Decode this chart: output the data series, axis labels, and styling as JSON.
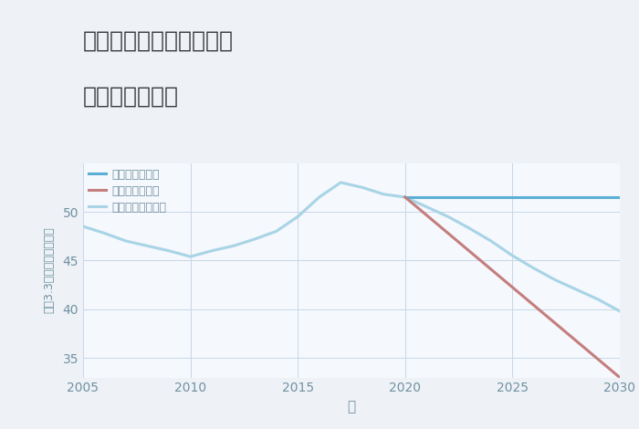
{
  "title_line1": "兵庫県西宮市名塩赤坂の",
  "title_line2": "土地の価格推移",
  "xlabel": "年",
  "ylabel": "平（3.3㎡）単価（万円）",
  "background_color": "#eef2f7",
  "plot_bg_color": "#f5f8fc",
  "good_scenario": {
    "label": "グッドシナリオ",
    "color": "#5bafd6",
    "years": [
      2020,
      2021,
      2022,
      2023,
      2024,
      2025,
      2026,
      2027,
      2028,
      2029,
      2030
    ],
    "values": [
      51.5,
      51.5,
      51.5,
      51.5,
      51.5,
      51.5,
      51.5,
      51.5,
      51.5,
      51.5,
      51.5
    ]
  },
  "bad_scenario": {
    "label": "バッドシナリオ",
    "color": "#c47e7e",
    "years": [
      2020,
      2030
    ],
    "values": [
      51.5,
      33.0
    ]
  },
  "normal_scenario": {
    "label": "ノーマルシナリオ",
    "color": "#a8d4e6",
    "years": [
      2005,
      2006,
      2007,
      2008,
      2009,
      2010,
      2011,
      2012,
      2013,
      2014,
      2015,
      2016,
      2017,
      2018,
      2019,
      2020,
      2021,
      2022,
      2023,
      2024,
      2025,
      2026,
      2027,
      2028,
      2029,
      2030
    ],
    "values": [
      48.5,
      47.8,
      47.0,
      46.5,
      46.0,
      45.4,
      46.0,
      46.5,
      47.2,
      48.0,
      49.5,
      51.5,
      53.0,
      52.5,
      51.8,
      51.5,
      50.5,
      49.5,
      48.3,
      47.0,
      45.5,
      44.2,
      43.0,
      42.0,
      41.0,
      39.8
    ]
  },
  "xlim": [
    2005,
    2030
  ],
  "ylim": [
    33,
    55
  ],
  "yticks": [
    35,
    40,
    45,
    50
  ],
  "xticks": [
    2005,
    2010,
    2015,
    2020,
    2025,
    2030
  ],
  "grid_color": "#c8d8e8",
  "title_color": "#3a3a3a",
  "tick_color": "#7090a0",
  "axis_label_color": "#7090a0",
  "line_width": 2.2,
  "title_fontsize": 18,
  "legend_fontsize": 9,
  "tick_fontsize": 10,
  "xlabel_fontsize": 11,
  "ylabel_fontsize": 9
}
